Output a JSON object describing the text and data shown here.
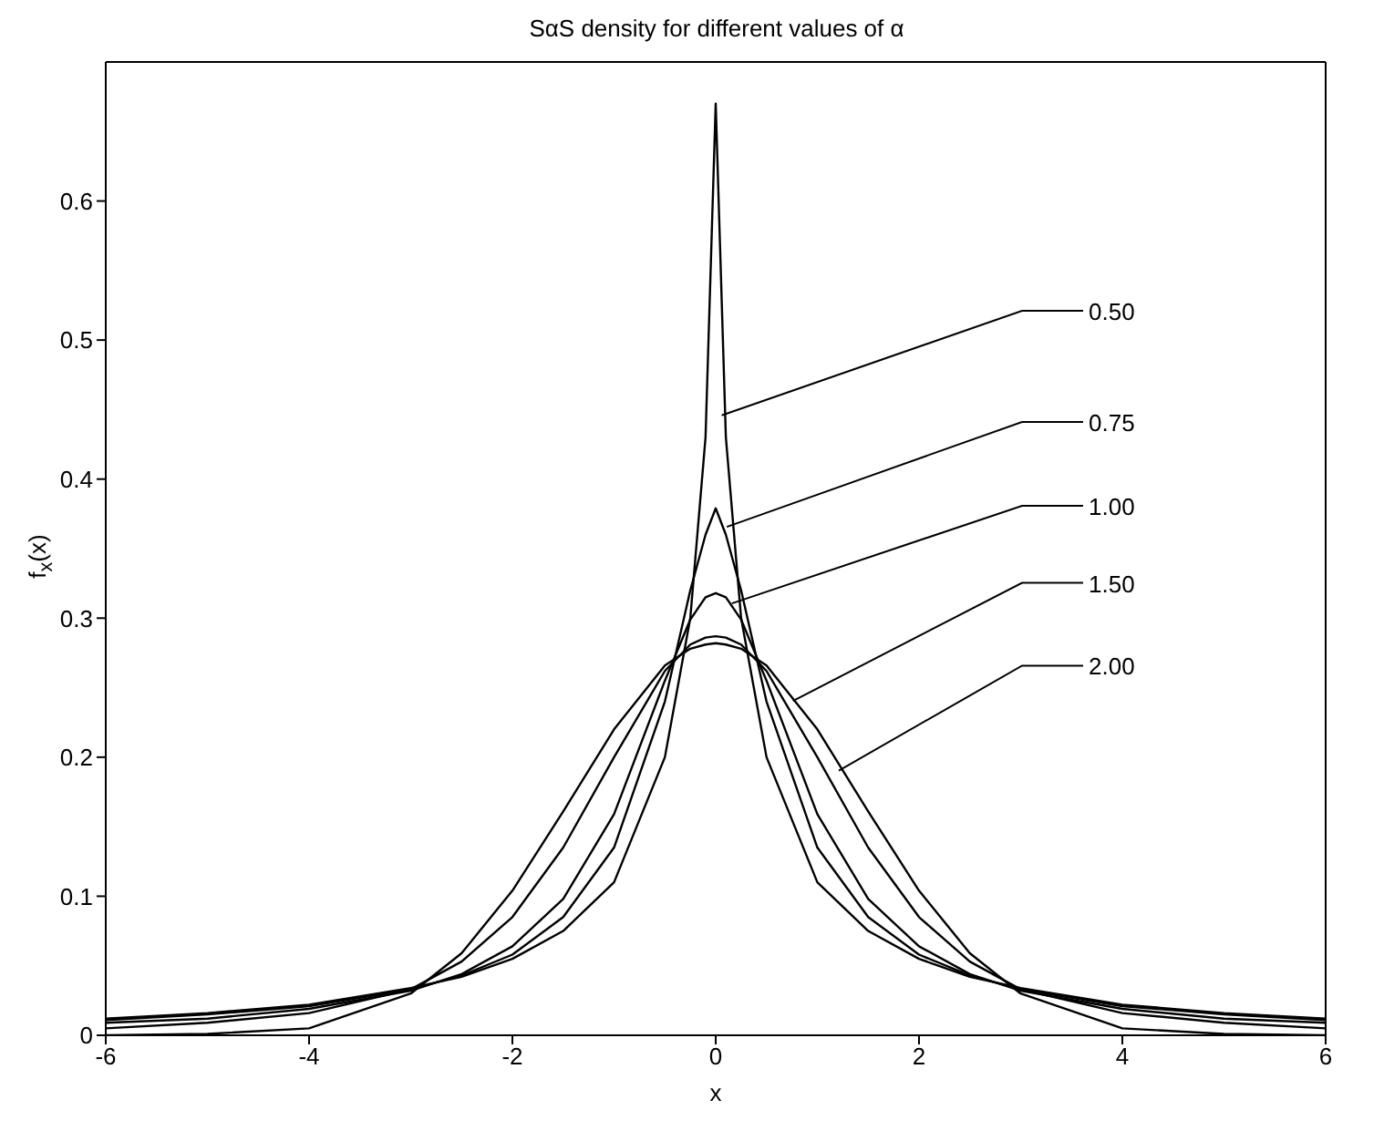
{
  "chart_data": {
    "type": "line",
    "title": "SαS density for different values of α",
    "xlabel": "x",
    "ylabel": "f$_{x}$(x)",
    "x": [
      -6,
      -5,
      -4,
      -3,
      -2.5,
      -2,
      -1.5,
      -1,
      -0.5,
      -0.25,
      -0.1,
      0,
      0.1,
      0.25,
      0.5,
      1,
      1.5,
      2,
      2.5,
      3,
      4,
      5,
      6
    ],
    "series": [
      {
        "color": "#000000",
        "values": [
          0.012,
          0.016,
          0.022,
          0.034,
          0.042,
          0.055,
          0.075,
          0.11,
          0.2,
          0.3,
          0.43,
          0.67,
          0.43,
          0.3,
          0.2,
          0.11,
          0.075,
          0.055,
          0.042,
          0.034,
          0.022,
          0.016,
          0.012
        ]
      },
      {
        "color": "#000000",
        "values": [
          0.011,
          0.015,
          0.021,
          0.033,
          0.043,
          0.058,
          0.085,
          0.135,
          0.24,
          0.32,
          0.36,
          0.379,
          0.36,
          0.32,
          0.24,
          0.135,
          0.085,
          0.058,
          0.043,
          0.033,
          0.021,
          0.015,
          0.011
        ]
      },
      {
        "color": "#000000",
        "values": [
          0.009,
          0.012,
          0.019,
          0.032,
          0.044,
          0.064,
          0.098,
          0.159,
          0.255,
          0.299,
          0.315,
          0.318,
          0.315,
          0.299,
          0.255,
          0.159,
          0.098,
          0.064,
          0.044,
          0.032,
          0.019,
          0.012,
          0.009
        ]
      },
      {
        "color": "#000000",
        "values": [
          0.005,
          0.009,
          0.016,
          0.033,
          0.053,
          0.085,
          0.135,
          0.2,
          0.262,
          0.281,
          0.286,
          0.287,
          0.286,
          0.281,
          0.262,
          0.2,
          0.135,
          0.085,
          0.053,
          0.033,
          0.016,
          0.009,
          0.005
        ]
      },
      {
        "color": "#000000",
        "values": [
          0,
          0.001,
          0.005,
          0.03,
          0.059,
          0.104,
          0.161,
          0.22,
          0.266,
          0.278,
          0.281,
          0.282,
          0.281,
          0.278,
          0.266,
          0.22,
          0.161,
          0.104,
          0.059,
          0.03,
          0.005,
          0.001,
          0
        ]
      }
    ],
    "annotations": [
      {
        "text": "0.50",
        "x": 0.05,
        "y": 0.445
      },
      {
        "text": "0.75",
        "x": 0.1,
        "y": 0.365
      },
      {
        "text": "1.00",
        "x": 0.15,
        "y": 0.31
      },
      {
        "text": "1.50",
        "x": 0.75,
        "y": 0.24
      },
      {
        "text": "2.00",
        "x": 1.2,
        "y": 0.19
      }
    ],
    "xlim": [
      -6,
      6
    ],
    "xticks": [
      -6,
      -4,
      -2,
      0,
      2,
      4,
      6
    ],
    "ylim": [
      0,
      0.7
    ],
    "yticks": [
      0,
      0.1,
      0.2,
      0.3,
      0.4,
      0.5,
      0.6
    ],
    "grid": false,
    "legend": false,
    "marker": "none",
    "line_style": "solid"
  }
}
